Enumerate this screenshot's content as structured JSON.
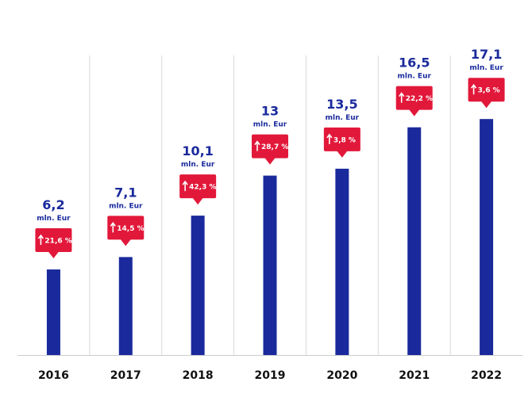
{
  "chart_data": {
    "type": "bar",
    "title": "",
    "xlabel": "",
    "ylabel": "",
    "categories": [
      "2016",
      "2017",
      "2018",
      "2019",
      "2020",
      "2021",
      "2022"
    ],
    "series": [
      {
        "values": [
          6.2,
          7.1,
          10.1,
          13,
          13.5,
          16.5,
          17.1
        ]
      }
    ],
    "value_labels": [
      "6,2",
      "7,1",
      "10,1",
      "13",
      "13,5",
      "16,5",
      "17,1"
    ],
    "unit": "mln. Eur",
    "growth_labels": [
      "21,6 %",
      "14,5 %",
      "42,3 %",
      "28,7 %",
      "3,8 %",
      "22,2 %",
      "3,6 %"
    ],
    "ylim": [
      0,
      17.8
    ],
    "grid": "vertical separators",
    "colors": {
      "bar": "#1a2a9c",
      "badge": "#e2183a",
      "value_text": "#1a2a9c",
      "year_text": "#111111",
      "grid": "#d9d9d9"
    }
  }
}
